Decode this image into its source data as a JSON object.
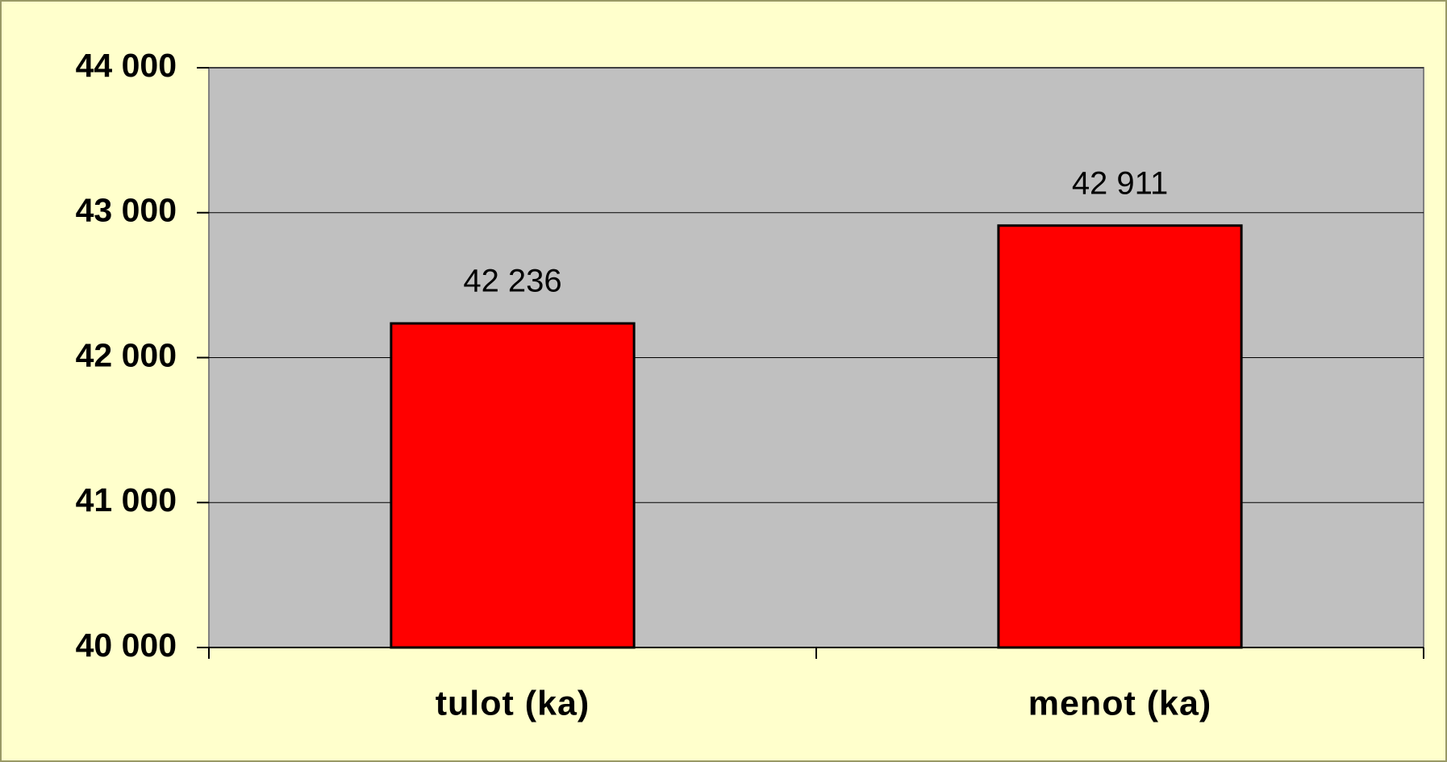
{
  "chart_data": {
    "type": "bar",
    "categories": [
      "tulot (ka)",
      "menot (ka)"
    ],
    "values": [
      42236,
      42911
    ],
    "value_labels": [
      "42 236",
      "42 911"
    ],
    "color": "#ff0000",
    "ylim": [
      40000,
      44000
    ],
    "yticks": [
      {
        "value": 40000,
        "label": "40 000"
      },
      {
        "value": 41000,
        "label": "41 000"
      },
      {
        "value": 42000,
        "label": "42 000"
      },
      {
        "value": 43000,
        "label": "43 000"
      },
      {
        "value": 44000,
        "label": "44 000"
      }
    ],
    "grid": true
  }
}
